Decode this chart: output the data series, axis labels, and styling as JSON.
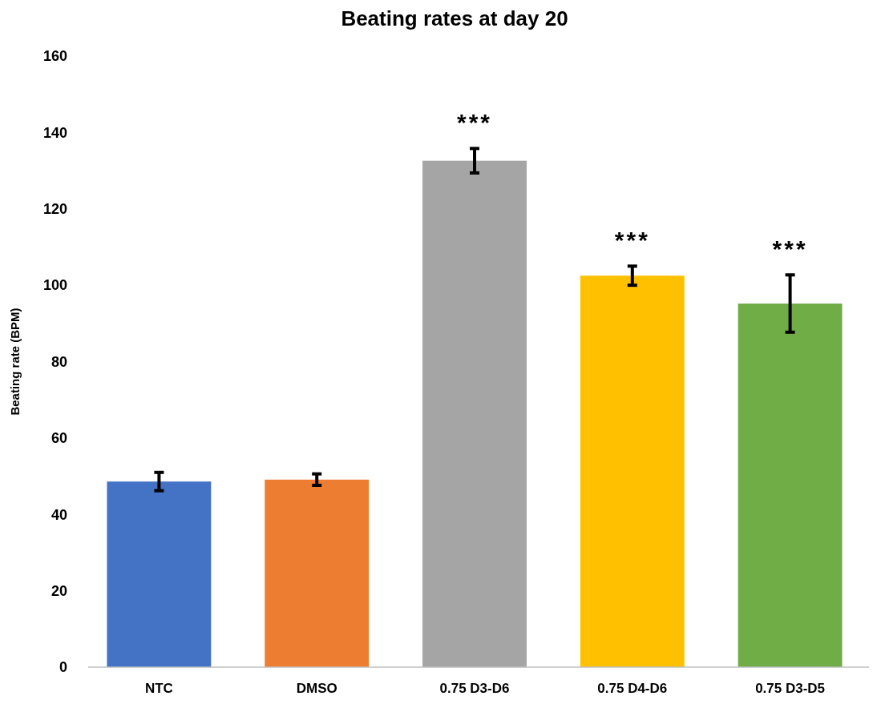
{
  "chart_data": {
    "type": "bar",
    "title": "Beating rates at day 20",
    "ylabel": "Beating rate (BPM)",
    "categories": [
      "NTC",
      "DMSO",
      "0.75 D3-D6",
      "0.75 D4-D6",
      "0.75 D3-D5"
    ],
    "values": [
      48.6,
      49.1,
      132.6,
      102.5,
      95.2
    ],
    "colors": [
      "#4472c4",
      "#ed7d31",
      "#a5a5a5",
      "#ffc000",
      "#70ad47"
    ],
    "errors": [
      2.4,
      1.5,
      3.2,
      2.5,
      7.5
    ],
    "value_labels": [
      null,
      null,
      "***",
      "***",
      "***"
    ],
    "ylim": [
      0,
      160
    ],
    "yticks": [
      0,
      20,
      40,
      60,
      80,
      100,
      120,
      140,
      160
    ],
    "grid": false
  }
}
